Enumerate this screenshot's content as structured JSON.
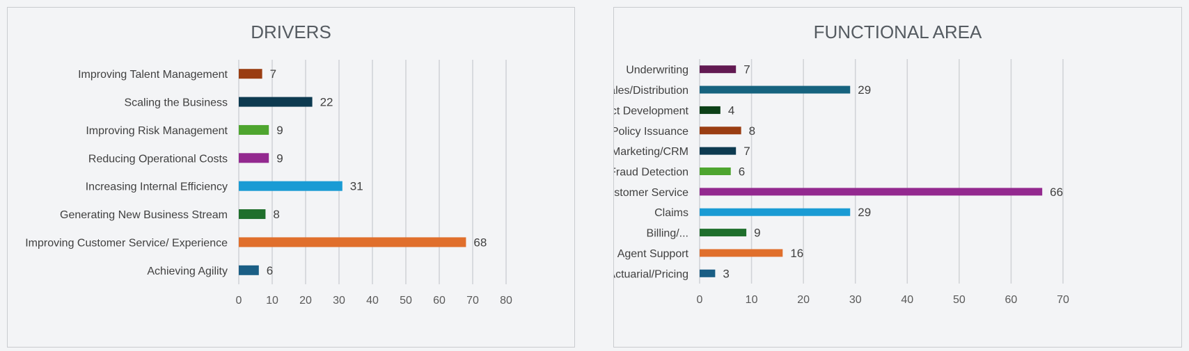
{
  "chart_data": [
    {
      "type": "bar",
      "orientation": "horizontal",
      "title": "DRIVERS",
      "categories": [
        "Improving Talent Management",
        "Scaling the Business",
        "Improving Risk Management",
        "Reducing Operational Costs",
        "Increasing Internal Efficiency",
        "Generating New Business Stream",
        "Improving Customer Service/ Experience",
        "Achieving Agility"
      ],
      "values": [
        7,
        22,
        9,
        9,
        31,
        8,
        68,
        6
      ],
      "colors": [
        "#9a3d12",
        "#0d3a50",
        "#4ea52f",
        "#93298f",
        "#1a9bd4",
        "#1f6f2c",
        "#e06f2c",
        "#1a5e85"
      ],
      "xlim": [
        0,
        80
      ],
      "xticks": [
        0,
        10,
        20,
        30,
        40,
        50,
        60,
        70,
        80
      ],
      "grid": "vertical",
      "data_labels": true
    },
    {
      "type": "bar",
      "orientation": "horizontal",
      "title": "FUNCTIONAL AREA",
      "categories": [
        "Underwriting",
        "Sales/Distribution",
        "Product Development",
        "Policy Issuance",
        "Marketing/CRM",
        "Fraud Detection",
        "Customer Service",
        "Claims",
        "Billing/...",
        "Agent Support",
        "Actuarial/Pricing"
      ],
      "values": [
        7,
        29,
        4,
        8,
        7,
        6,
        66,
        29,
        9,
        16,
        3
      ],
      "colors": [
        "#621a52",
        "#16637f",
        "#0c4017",
        "#9a3d12",
        "#0d3a50",
        "#4ea52f",
        "#93298f",
        "#1a9bd4",
        "#1f6f2c",
        "#e06f2c",
        "#1a5e85"
      ],
      "xlim": [
        0,
        70
      ],
      "xticks": [
        0,
        10,
        20,
        30,
        40,
        50,
        60,
        70
      ],
      "grid": "vertical",
      "data_labels": true
    }
  ]
}
